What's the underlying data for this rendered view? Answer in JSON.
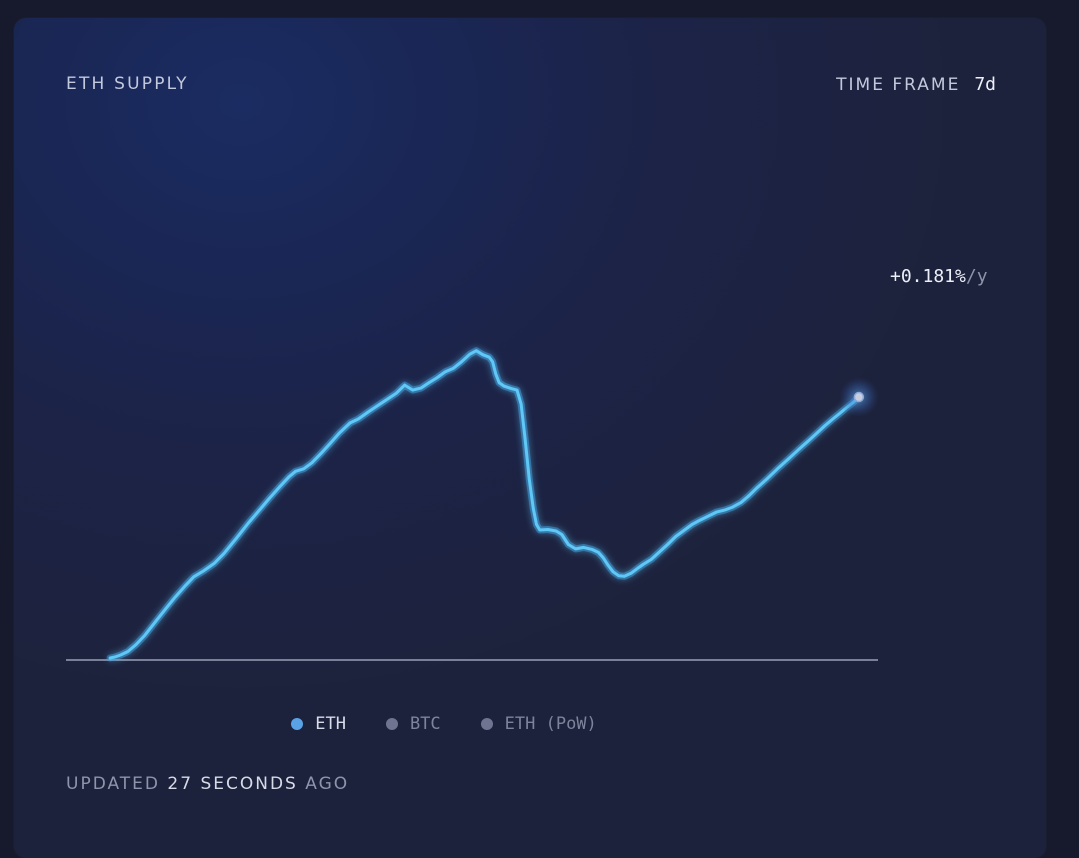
{
  "card": {
    "title": "ETH SUPPLY",
    "timeframe_label": "TIME FRAME",
    "timeframe_value": "7d",
    "rate_value": "+0.181%",
    "rate_unit": "/y",
    "updated": {
      "prefix": "UPDATED",
      "number": "27",
      "unit": "SECONDS",
      "suffix": "AGO"
    }
  },
  "legend": [
    {
      "label": "ETH",
      "color": "#5aa2e6",
      "active": true
    },
    {
      "label": "BTC",
      "color": "#6f7590",
      "active": false
    },
    {
      "label": "ETH (PoW)",
      "color": "#6f7590",
      "active": false
    }
  ],
  "colors": {
    "line": "#5ec8f5",
    "glow": "#3a9ff0",
    "baseline": "#9aa0b6"
  },
  "chart_data": {
    "type": "line",
    "series": [
      {
        "name": "ETH",
        "points": [
          [
            0.0,
            0.0
          ],
          [
            0.006,
            0.002
          ],
          [
            0.013,
            0.006
          ],
          [
            0.022,
            0.013
          ],
          [
            0.032,
            0.027
          ],
          [
            0.043,
            0.046
          ],
          [
            0.055,
            0.071
          ],
          [
            0.068,
            0.098
          ],
          [
            0.08,
            0.122
          ],
          [
            0.093,
            0.146
          ],
          [
            0.103,
            0.163
          ],
          [
            0.115,
            0.175
          ],
          [
            0.128,
            0.19
          ],
          [
            0.14,
            0.21
          ],
          [
            0.155,
            0.24
          ],
          [
            0.17,
            0.271
          ],
          [
            0.183,
            0.296
          ],
          [
            0.195,
            0.319
          ],
          [
            0.208,
            0.343
          ],
          [
            0.22,
            0.364
          ],
          [
            0.228,
            0.375
          ],
          [
            0.238,
            0.38
          ],
          [
            0.248,
            0.392
          ],
          [
            0.26,
            0.412
          ],
          [
            0.27,
            0.43
          ],
          [
            0.282,
            0.452
          ],
          [
            0.295,
            0.472
          ],
          [
            0.305,
            0.48
          ],
          [
            0.318,
            0.495
          ],
          [
            0.33,
            0.508
          ],
          [
            0.342,
            0.521
          ],
          [
            0.352,
            0.532
          ],
          [
            0.362,
            0.548
          ],
          [
            0.372,
            0.538
          ],
          [
            0.382,
            0.542
          ],
          [
            0.392,
            0.553
          ],
          [
            0.402,
            0.563
          ],
          [
            0.412,
            0.575
          ],
          [
            0.422,
            0.582
          ],
          [
            0.432,
            0.595
          ],
          [
            0.442,
            0.61
          ],
          [
            0.45,
            0.617
          ],
          [
            0.458,
            0.609
          ],
          [
            0.466,
            0.604
          ],
          [
            0.47,
            0.595
          ],
          [
            0.474,
            0.57
          ],
          [
            0.478,
            0.553
          ],
          [
            0.484,
            0.546
          ],
          [
            0.493,
            0.541
          ],
          [
            0.5,
            0.538
          ],
          [
            0.505,
            0.51
          ],
          [
            0.51,
            0.44
          ],
          [
            0.515,
            0.36
          ],
          [
            0.52,
            0.3
          ],
          [
            0.524,
            0.268
          ],
          [
            0.528,
            0.257
          ],
          [
            0.538,
            0.258
          ],
          [
            0.548,
            0.255
          ],
          [
            0.555,
            0.248
          ],
          [
            0.563,
            0.228
          ],
          [
            0.572,
            0.219
          ],
          [
            0.582,
            0.222
          ],
          [
            0.592,
            0.218
          ],
          [
            0.6,
            0.212
          ],
          [
            0.606,
            0.201
          ],
          [
            0.612,
            0.186
          ],
          [
            0.618,
            0.173
          ],
          [
            0.625,
            0.165
          ],
          [
            0.632,
            0.164
          ],
          [
            0.64,
            0.17
          ],
          [
            0.648,
            0.18
          ],
          [
            0.655,
            0.188
          ],
          [
            0.665,
            0.198
          ],
          [
            0.675,
            0.213
          ],
          [
            0.685,
            0.228
          ],
          [
            0.695,
            0.244
          ],
          [
            0.705,
            0.256
          ],
          [
            0.715,
            0.268
          ],
          [
            0.725,
            0.277
          ],
          [
            0.735,
            0.285
          ],
          [
            0.745,
            0.293
          ],
          [
            0.755,
            0.297
          ],
          [
            0.765,
            0.303
          ],
          [
            0.775,
            0.312
          ],
          [
            0.785,
            0.326
          ],
          [
            0.795,
            0.342
          ],
          [
            0.808,
            0.361
          ],
          [
            0.82,
            0.38
          ],
          [
            0.833,
            0.399
          ],
          [
            0.845,
            0.417
          ],
          [
            0.858,
            0.436
          ],
          [
            0.868,
            0.451
          ],
          [
            0.878,
            0.466
          ],
          [
            0.888,
            0.48
          ],
          [
            0.897,
            0.492
          ],
          [
            0.905,
            0.503
          ],
          [
            0.913,
            0.513
          ],
          [
            0.92,
            0.524
          ]
        ]
      }
    ],
    "end_point": [
      0.92,
      0.524
    ],
    "legend_position": "bottom",
    "grid": false
  }
}
